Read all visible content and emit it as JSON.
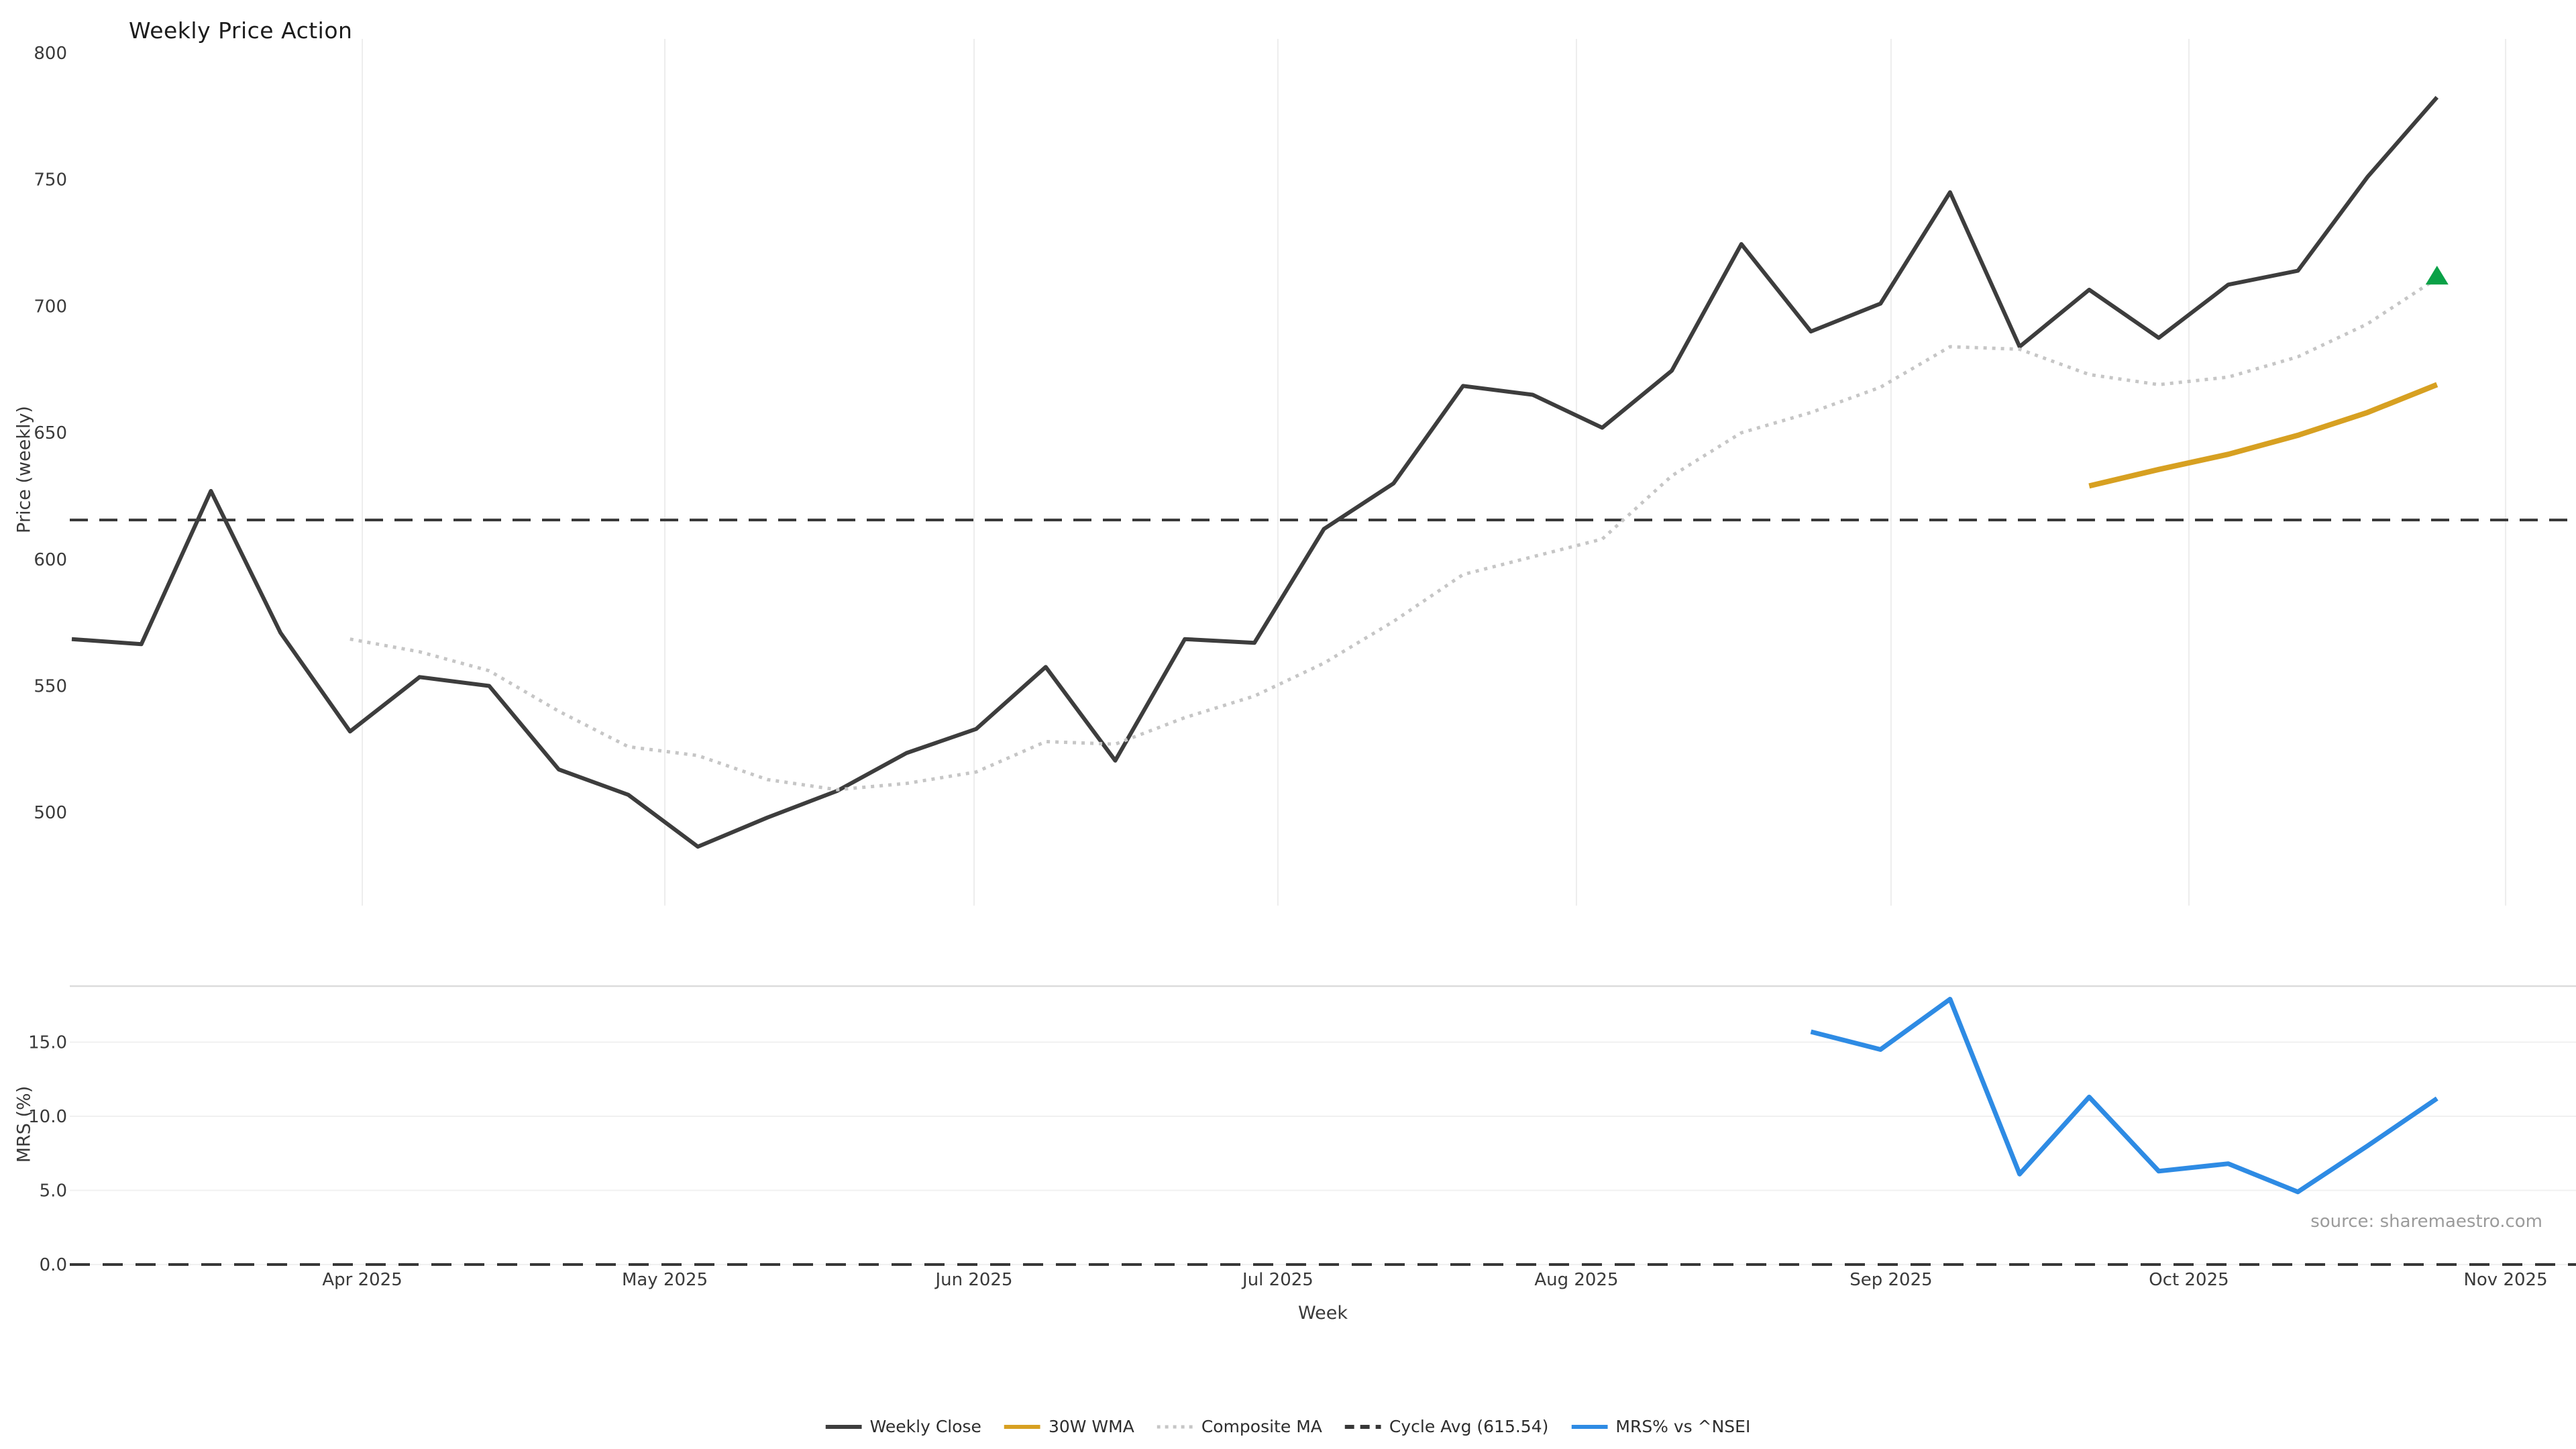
{
  "title": "Weekly Price Action",
  "source_note": "source: sharemaestro.com",
  "colors": {
    "weekly_close": "#3d3d3d",
    "wma_30w": "#d7a021",
    "composite_ma": "#c6c6c6",
    "cycle_avg": "#373737",
    "mrs": "#2e8be4",
    "triangle": "#0aa147",
    "gridline": "#ededed",
    "panel_spine": "#dcdcdc",
    "tick_text": "#3a3a3a"
  },
  "price_panel": {
    "ylabel": "Price (weekly)",
    "yticks": [
      500,
      550,
      600,
      650,
      700,
      750,
      800
    ]
  },
  "mrs_panel": {
    "ylabel": "MRS (%)",
    "ytick_labels": [
      "0.0",
      "5.0",
      "10.0",
      "15.0"
    ],
    "yticks": [
      0,
      5,
      10,
      15
    ]
  },
  "xlabel": "Week",
  "xticks": [
    {
      "label": "Apr 2025",
      "week": 4.176
    },
    {
      "label": "May 2025",
      "week": 8.525
    },
    {
      "label": "Jun 2025",
      "week": 12.97
    },
    {
      "label": "Jul 2025",
      "week": 17.338
    },
    {
      "label": "Aug 2025",
      "week": 21.629
    },
    {
      "label": "Sep 2025",
      "week": 26.152
    },
    {
      "label": "Oct 2025",
      "week": 30.434
    },
    {
      "label": "Nov 2025",
      "week": 34.986
    }
  ],
  "legend": [
    {
      "label": "Weekly Close",
      "style": "solid",
      "color": "#3d3d3d"
    },
    {
      "label": "30W WMA",
      "style": "solid",
      "color": "#d7a021"
    },
    {
      "label": "Composite MA",
      "style": "dotted",
      "color": "#c6c6c6"
    },
    {
      "label": "Cycle Avg (615.54)",
      "style": "dashed",
      "color": "#373737"
    },
    {
      "label": "MRS% vs ^NSEI",
      "style": "solid",
      "color": "#2e8be4"
    }
  ],
  "chart_data": [
    {
      "type": "line",
      "title": "Weekly Price Action",
      "xlabel": "Week",
      "ylabel": "Price (weekly)",
      "x_frequency": "weekly",
      "categories": [
        "2025-03-03",
        "2025-03-10",
        "2025-03-17",
        "2025-03-24",
        "2025-03-31",
        "2025-04-07",
        "2025-04-14",
        "2025-04-21",
        "2025-04-28",
        "2025-05-05",
        "2025-05-12",
        "2025-05-19",
        "2025-05-26",
        "2025-06-02",
        "2025-06-09",
        "2025-06-16",
        "2025-06-23",
        "2025-06-30",
        "2025-07-07",
        "2025-07-14",
        "2025-07-21",
        "2025-07-28",
        "2025-08-04",
        "2025-08-11",
        "2025-08-18",
        "2025-08-25",
        "2025-09-01",
        "2025-09-08",
        "2025-09-15",
        "2025-09-22",
        "2025-09-29",
        "2025-10-06",
        "2025-10-13",
        "2025-10-20",
        "2025-10-27"
      ],
      "ylim": [
        462,
        806
      ],
      "grid": "vertical-month-lines",
      "legend_position": "bottom-center",
      "series": [
        {
          "name": "Weekly Close",
          "style": "solid",
          "color": "#3d3d3d",
          "values": [
            568.5,
            566.5,
            627,
            571,
            532,
            553.5,
            550,
            517,
            507,
            486.5,
            498,
            508.5,
            523.5,
            533,
            557.5,
            520.5,
            568.5,
            567,
            612,
            630,
            668.5,
            665,
            652,
            674.5,
            724.5,
            690,
            701,
            745,
            684,
            706.5,
            687.5,
            708.5,
            714,
            751,
            782.5
          ]
        },
        {
          "name": "30W WMA",
          "style": "solid",
          "color": "#d7a021",
          "values": [
            null,
            null,
            null,
            null,
            null,
            null,
            null,
            null,
            null,
            null,
            null,
            null,
            null,
            null,
            null,
            null,
            null,
            null,
            null,
            null,
            null,
            null,
            null,
            null,
            null,
            null,
            null,
            null,
            null,
            629,
            635.5,
            641.5,
            649,
            658,
            669
          ]
        },
        {
          "name": "Composite MA",
          "style": "dotted",
          "color": "#c6c6c6",
          "values": [
            null,
            null,
            null,
            null,
            568.5,
            563.5,
            556,
            540,
            526,
            522.5,
            513,
            509,
            511.5,
            516,
            528,
            527,
            537.5,
            546,
            559,
            575.5,
            594,
            601,
            608,
            633,
            650,
            658,
            668,
            684,
            683,
            673,
            669,
            672,
            680,
            693,
            711
          ]
        },
        {
          "name": "Cycle Avg (615.54)",
          "style": "dashed",
          "color": "#373737",
          "constant": 615.54
        }
      ],
      "annotations": [
        {
          "type": "triangle-up",
          "color": "#0aa147",
          "x_index": 34,
          "y": 712,
          "meaning": "latest composite MA direction marker"
        }
      ]
    },
    {
      "type": "line",
      "ylabel": "MRS (%)",
      "xlabel": "Week",
      "shared_x_with": 0,
      "ylim": [
        -2.6,
        18.8
      ],
      "zero_line": true,
      "series": [
        {
          "name": "MRS% vs ^NSEI",
          "style": "solid",
          "color": "#2e8be4",
          "values": [
            null,
            null,
            null,
            null,
            null,
            null,
            null,
            null,
            null,
            null,
            null,
            null,
            null,
            null,
            null,
            null,
            null,
            null,
            null,
            null,
            null,
            null,
            null,
            null,
            null,
            15.7,
            14.5,
            17.9,
            6.1,
            11.3,
            6.3,
            6.8,
            4.9,
            8.0,
            11.2
          ]
        }
      ]
    }
  ]
}
